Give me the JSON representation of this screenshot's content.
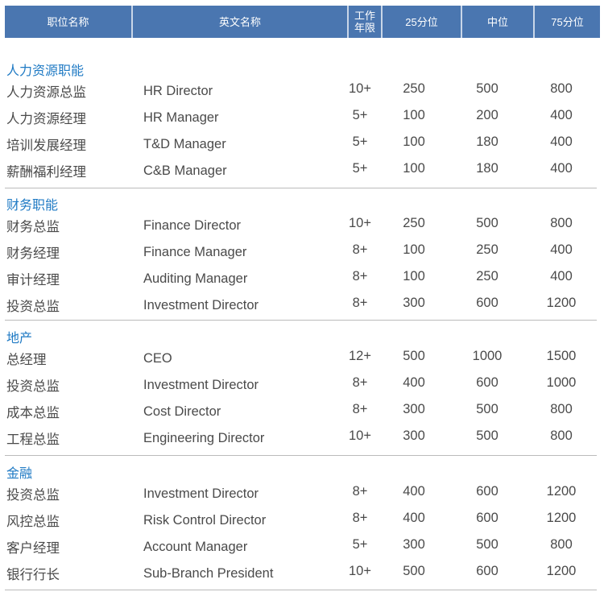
{
  "header": [
    "职位名称",
    "英文名称",
    "工作年限",
    "25分位",
    "中位",
    "75分位"
  ],
  "sections": [
    {
      "title": "人力资源职能",
      "rows": [
        [
          "人力资源总监",
          "HR Director",
          "10+",
          "250",
          "500",
          "800"
        ],
        [
          "人力资源经理",
          "HR Manager",
          "5+",
          "100",
          "200",
          "400"
        ],
        [
          "培训发展经理",
          "T&D Manager",
          "5+",
          "100",
          "180",
          "400"
        ],
        [
          "薪酬福利经理",
          "C&B Manager",
          "5+",
          "100",
          "180",
          "400"
        ]
      ]
    },
    {
      "title": "财务职能",
      "rows": [
        [
          "财务总监",
          "Finance Director",
          "10+",
          "250",
          "500",
          "800"
        ],
        [
          "财务经理",
          "Finance Manager",
          "8+",
          "100",
          "250",
          "400"
        ],
        [
          "审计经理",
          "Auditing Manager",
          "8+",
          "100",
          "250",
          "400"
        ],
        [
          "投资总监",
          "Investment Director",
          "8+",
          "300",
          "600",
          "1200"
        ]
      ]
    },
    {
      "title": "地产",
      "rows": [
        [
          "总经理",
          "CEO",
          "12+",
          "500",
          "1000",
          "1500"
        ],
        [
          "投资总监",
          "Investment Director",
          "8+",
          "400",
          "600",
          "1000"
        ],
        [
          "成本总监",
          "Cost Director",
          "8+",
          "300",
          "500",
          "800"
        ],
        [
          "工程总监",
          "Engineering  Director",
          "10+",
          "300",
          "500",
          "800"
        ]
      ]
    },
    {
      "title": "金融",
      "rows": [
        [
          "投资总监",
          "Investment Director",
          "8+",
          "400",
          "600",
          "1200"
        ],
        [
          "风控总监",
          "Risk Control  Director",
          "8+",
          "400",
          "600",
          "1200"
        ],
        [
          "客户经理",
          "Account Manager",
          "5+",
          "300",
          "500",
          "800"
        ],
        [
          "银行行长",
          "Sub-Branch President",
          "10+",
          "500",
          "600",
          "1200"
        ]
      ]
    }
  ]
}
